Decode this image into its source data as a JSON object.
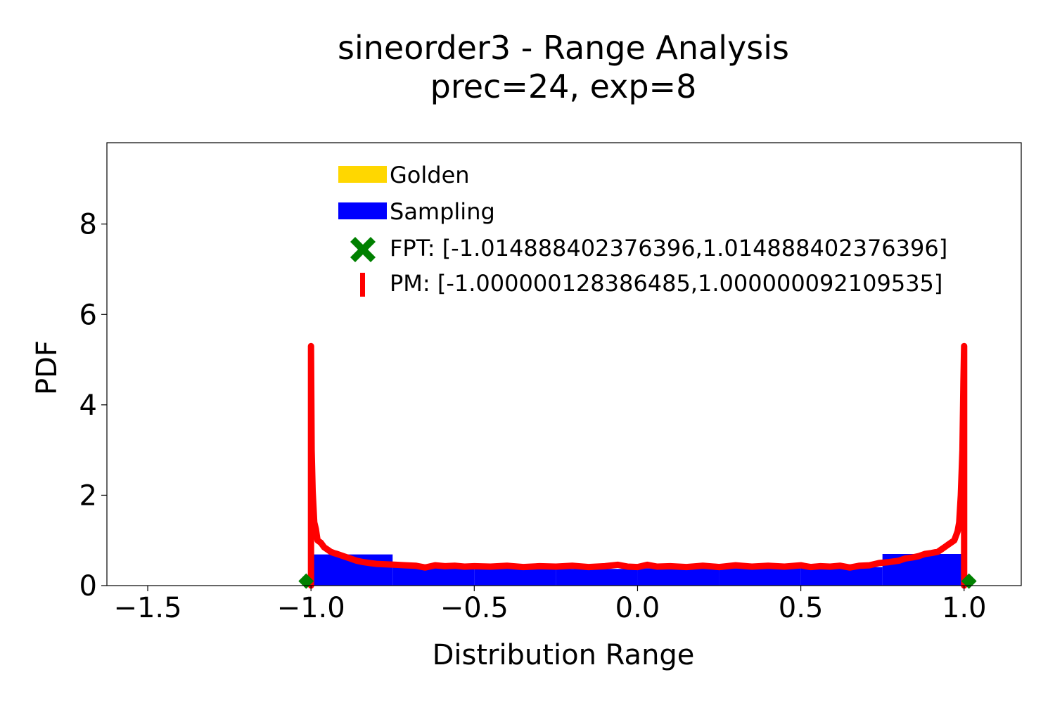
{
  "chart_data": {
    "type": "bar",
    "title": "sineorder3 - Range Analysis",
    "subtitle": "prec=24, exp=8",
    "xlabel": "Distribution Range",
    "ylabel": "PDF",
    "xlim": [
      -1.625,
      1.175
    ],
    "ylim": [
      0,
      9.8
    ],
    "x_ticks": [
      -1.5,
      -1.0,
      -0.5,
      0.0,
      0.5,
      1.0
    ],
    "x_tick_labels": [
      "−1.5",
      "−1.0",
      "−0.5",
      "0.0",
      "0.5",
      "1.0"
    ],
    "y_ticks": [
      0,
      2,
      4,
      6,
      8
    ],
    "y_tick_labels": [
      "0",
      "2",
      "4",
      "6",
      "8"
    ],
    "grid": false,
    "legend_placement": "upper-center",
    "legend": [
      {
        "label": "Golden",
        "marker": "bar",
        "color": "#ffd700"
      },
      {
        "label": "Sampling",
        "marker": "bar",
        "color": "#0000ff"
      },
      {
        "label": "FPT: [-1.014888402376396,1.014888402376396]",
        "marker": "x-cross",
        "color": "#008000"
      },
      {
        "label": "PM: [-1.000000128386485,1.000000092109535]",
        "marker": "vline",
        "color": "#ff0000"
      }
    ],
    "series": [
      {
        "name": "Sampling",
        "kind": "histogram",
        "color": "#0000ff",
        "bins": [
          {
            "x0": -1.0,
            "x1": -0.75,
            "value": 0.69
          },
          {
            "x0": -0.75,
            "x1": -0.5,
            "value": 0.42
          },
          {
            "x0": -0.5,
            "x1": -0.25,
            "value": 0.38
          },
          {
            "x0": -0.25,
            "x1": 0.0,
            "value": 0.37
          },
          {
            "x0": 0.0,
            "x1": 0.25,
            "value": 0.38
          },
          {
            "x0": 0.25,
            "x1": 0.5,
            "value": 0.38
          },
          {
            "x0": 0.5,
            "x1": 0.75,
            "value": 0.41
          },
          {
            "x0": 0.75,
            "x1": 1.0,
            "value": 0.7
          }
        ]
      },
      {
        "name": "PM",
        "kind": "line",
        "color": "#ff0000",
        "x": [
          -1.0,
          -1.0,
          -0.998,
          -0.995,
          -0.99,
          -0.985,
          -0.98,
          -0.97,
          -0.96,
          -0.95,
          -0.94,
          -0.93,
          -0.92,
          -0.9,
          -0.88,
          -0.86,
          -0.84,
          -0.82,
          -0.8,
          -0.77,
          -0.74,
          -0.71,
          -0.68,
          -0.65,
          -0.62,
          -0.59,
          -0.56,
          -0.53,
          -0.5,
          -0.45,
          -0.4,
          -0.35,
          -0.3,
          -0.25,
          -0.2,
          -0.15,
          -0.1,
          -0.06,
          -0.03,
          0.0,
          0.03,
          0.06,
          0.1,
          0.15,
          0.2,
          0.25,
          0.3,
          0.35,
          0.4,
          0.45,
          0.5,
          0.53,
          0.56,
          0.59,
          0.62,
          0.65,
          0.68,
          0.71,
          0.74,
          0.77,
          0.8,
          0.82,
          0.84,
          0.86,
          0.88,
          0.9,
          0.92,
          0.93,
          0.94,
          0.95,
          0.96,
          0.97,
          0.98,
          0.985,
          0.99,
          0.995,
          0.998,
          1.0,
          1.0
        ],
        "y": [
          0.0,
          5.3,
          3.0,
          2.1,
          1.4,
          1.25,
          1.0,
          0.95,
          0.85,
          0.8,
          0.75,
          0.72,
          0.7,
          0.65,
          0.6,
          0.55,
          0.52,
          0.5,
          0.48,
          0.47,
          0.46,
          0.45,
          0.44,
          0.4,
          0.45,
          0.43,
          0.44,
          0.42,
          0.43,
          0.42,
          0.44,
          0.41,
          0.43,
          0.42,
          0.44,
          0.41,
          0.43,
          0.46,
          0.42,
          0.41,
          0.46,
          0.42,
          0.43,
          0.41,
          0.44,
          0.41,
          0.45,
          0.42,
          0.44,
          0.42,
          0.45,
          0.41,
          0.43,
          0.42,
          0.44,
          0.4,
          0.44,
          0.45,
          0.5,
          0.52,
          0.55,
          0.6,
          0.62,
          0.65,
          0.7,
          0.72,
          0.75,
          0.8,
          0.85,
          0.9,
          0.95,
          1.0,
          1.2,
          1.4,
          2.0,
          3.0,
          4.5,
          5.3,
          0.0
        ]
      },
      {
        "name": "FPT",
        "kind": "markers",
        "color": "#008000",
        "points": [
          {
            "x": -1.014888402376396,
            "y": 0.1
          },
          {
            "x": 1.014888402376396,
            "y": 0.1
          }
        ]
      }
    ]
  }
}
